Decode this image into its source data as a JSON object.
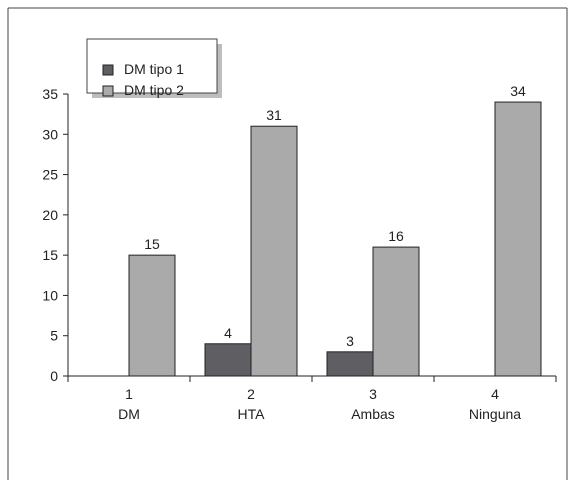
{
  "chart_data": {
    "type": "bar",
    "categories": [
      {
        "number": "1",
        "label": "DM"
      },
      {
        "number": "2",
        "label": "HTA"
      },
      {
        "number": "3",
        "label": "Ambas"
      },
      {
        "number": "4",
        "label": "Ninguna"
      }
    ],
    "series": [
      {
        "name": "DM tipo 1",
        "color": "#5f5f63",
        "values": [
          null,
          4,
          3,
          null
        ],
        "labels": [
          "",
          "4",
          "3",
          ""
        ]
      },
      {
        "name": "DM tipo 2",
        "color": "#aaaaaa",
        "values": [
          15,
          31,
          16,
          34
        ],
        "labels": [
          "15",
          "31",
          "16",
          "34"
        ]
      }
    ],
    "ylim": [
      0,
      35
    ],
    "yticks": [
      "0",
      "5",
      "10",
      "15",
      "20",
      "25",
      "30",
      "35"
    ],
    "legend_position": "top-left",
    "grid": false
  },
  "legend": {
    "series1": "DM tipo 1",
    "series2": "DM tipo 2"
  }
}
